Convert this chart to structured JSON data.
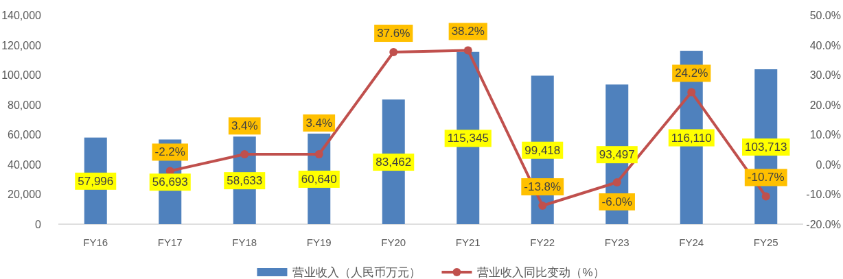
{
  "chart_data": {
    "type": "bar",
    "categories": [
      "FY16",
      "FY17",
      "FY18",
      "FY19",
      "FY20",
      "FY21",
      "FY22",
      "FY23",
      "FY24",
      "FY25"
    ],
    "series": [
      {
        "name": "营业收入（人民币万元）",
        "color": "#4f81bd",
        "values": [
          57996,
          56693,
          58633,
          60640,
          83462,
          115345,
          99418,
          93497,
          116110,
          103713
        ],
        "value_labels": [
          "57,996",
          "56,693",
          "58,633",
          "60,640",
          "83,462",
          "115,345",
          "99,418",
          "93,497",
          "116,110",
          "103,713"
        ]
      },
      {
        "name": "营业收入同比变动（%）",
        "type": "line",
        "axis": "y2",
        "color": "#c0504d",
        "values": [
          null,
          -2.2,
          3.4,
          3.4,
          37.6,
          38.2,
          -13.8,
          -6.0,
          24.2,
          -10.7
        ],
        "value_labels": [
          null,
          "-2.2%",
          "3.4%",
          "3.4%",
          "37.6%",
          "38.2%",
          "-13.8%",
          "-6.0%",
          "24.2%",
          "-10.7%"
        ]
      }
    ],
    "ylim": [
      0,
      140000
    ],
    "yticks": [
      {
        "value": 0,
        "label": "0"
      },
      {
        "value": 20000,
        "label": "20,000"
      },
      {
        "value": 40000,
        "label": "40,000"
      },
      {
        "value": 60000,
        "label": "60,000"
      },
      {
        "value": 80000,
        "label": "80,000"
      },
      {
        "value": 100000,
        "label": "100,000"
      },
      {
        "value": 120000,
        "label": "120,000"
      },
      {
        "value": 140000,
        "label": "140,000"
      }
    ],
    "y2lim": [
      -20,
      50
    ],
    "y2ticks": [
      {
        "value": -20,
        "label": "-20.0%"
      },
      {
        "value": -10,
        "label": "-10.0%"
      },
      {
        "value": 0,
        "label": "0.0%"
      },
      {
        "value": 10,
        "label": "10.0%"
      },
      {
        "value": 20,
        "label": "20.0%"
      },
      {
        "value": 30,
        "label": "30.0%"
      },
      {
        "value": 40,
        "label": "40.0%"
      },
      {
        "value": 50,
        "label": "50.0%"
      }
    ],
    "marker": "circle",
    "legend": "bottom"
  }
}
